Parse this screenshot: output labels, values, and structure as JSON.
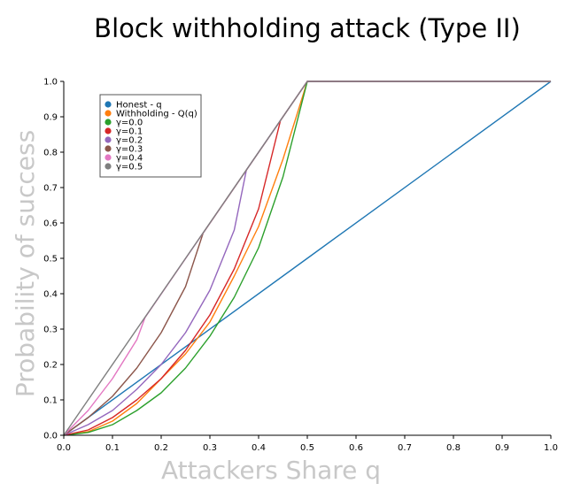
{
  "chart_data": {
    "type": "line",
    "title": "Block withholding attack (Type II)",
    "xlabel": "Attackers Share q",
    "ylabel": "Probability of success",
    "xlim": [
      0.0,
      1.0
    ],
    "ylim": [
      0.0,
      1.0
    ],
    "x_ticks": [
      "0.0",
      "0.1",
      "0.2",
      "0.3",
      "0.4",
      "0.5",
      "0.6",
      "0.7",
      "0.8",
      "0.9",
      "1.0"
    ],
    "y_ticks": [
      "0.0",
      "0.1",
      "0.2",
      "0.3",
      "0.4",
      "0.5",
      "0.6",
      "0.7",
      "0.8",
      "0.9",
      "1.0"
    ],
    "grid": false,
    "legend_position": "top-left",
    "series": [
      {
        "name": "Honest - q",
        "color": "#1f77b4",
        "x": [
          0.0,
          0.5,
          1.0
        ],
        "y": [
          0.0,
          0.5,
          1.0
        ]
      },
      {
        "name": "Withholding - Q(q)",
        "color": "#ff7f0e",
        "x": [
          0.0,
          0.05,
          0.1,
          0.15,
          0.2,
          0.25,
          0.3,
          0.35,
          0.4,
          0.45,
          0.5,
          0.6,
          0.7,
          0.8,
          0.9,
          1.0
        ],
        "y": [
          0.0,
          0.01,
          0.04,
          0.09,
          0.16,
          0.23,
          0.32,
          0.45,
          0.59,
          0.78,
          1.0,
          1.0,
          1.0,
          1.0,
          1.0,
          1.0
        ]
      },
      {
        "name": "γ=0.0",
        "color": "#2ca02c",
        "x": [
          0.0,
          0.05,
          0.1,
          0.15,
          0.2,
          0.25,
          0.3,
          0.35,
          0.4,
          0.45,
          0.5,
          0.6,
          0.7,
          0.8,
          0.9,
          1.0
        ],
        "y": [
          0.0,
          0.008,
          0.03,
          0.07,
          0.12,
          0.19,
          0.28,
          0.39,
          0.53,
          0.73,
          1.0,
          1.0,
          1.0,
          1.0,
          1.0,
          1.0
        ]
      },
      {
        "name": "γ=0.1",
        "color": "#d62728",
        "x": [
          0.0,
          0.05,
          0.1,
          0.15,
          0.2,
          0.25,
          0.3,
          0.35,
          0.4,
          0.445,
          0.5,
          0.6,
          0.7,
          0.8,
          0.9,
          1.0
        ],
        "y": [
          0.0,
          0.015,
          0.05,
          0.1,
          0.16,
          0.24,
          0.34,
          0.47,
          0.64,
          0.89,
          1.0,
          1.0,
          1.0,
          1.0,
          1.0,
          1.0
        ]
      },
      {
        "name": "γ=0.2",
        "color": "#9467bd",
        "x": [
          0.0,
          0.05,
          0.1,
          0.15,
          0.2,
          0.25,
          0.3,
          0.35,
          0.375,
          0.5,
          0.6,
          0.7,
          0.8,
          0.9,
          1.0
        ],
        "y": [
          0.0,
          0.03,
          0.07,
          0.13,
          0.2,
          0.29,
          0.41,
          0.58,
          0.75,
          1.0,
          1.0,
          1.0,
          1.0,
          1.0,
          1.0
        ]
      },
      {
        "name": "γ=0.3",
        "color": "#8c564b",
        "x": [
          0.0,
          0.05,
          0.1,
          0.15,
          0.2,
          0.25,
          0.286,
          0.5,
          0.6,
          0.7,
          0.8,
          0.9,
          1.0
        ],
        "y": [
          0.0,
          0.05,
          0.11,
          0.19,
          0.29,
          0.42,
          0.571,
          1.0,
          1.0,
          1.0,
          1.0,
          1.0,
          1.0
        ]
      },
      {
        "name": "γ=0.4",
        "color": "#e377c2",
        "x": [
          0.0,
          0.05,
          0.1,
          0.15,
          0.167,
          0.5,
          0.6,
          0.7,
          0.8,
          0.9,
          1.0
        ],
        "y": [
          0.0,
          0.07,
          0.16,
          0.27,
          0.333,
          1.0,
          1.0,
          1.0,
          1.0,
          1.0,
          1.0
        ]
      },
      {
        "name": "γ=0.5",
        "color": "#7f7f7f",
        "x": [
          0.0,
          0.5,
          0.6,
          0.7,
          0.8,
          0.9,
          1.0
        ],
        "y": [
          0.0,
          1.0,
          1.0,
          1.0,
          1.0,
          1.0,
          1.0
        ]
      }
    ]
  }
}
